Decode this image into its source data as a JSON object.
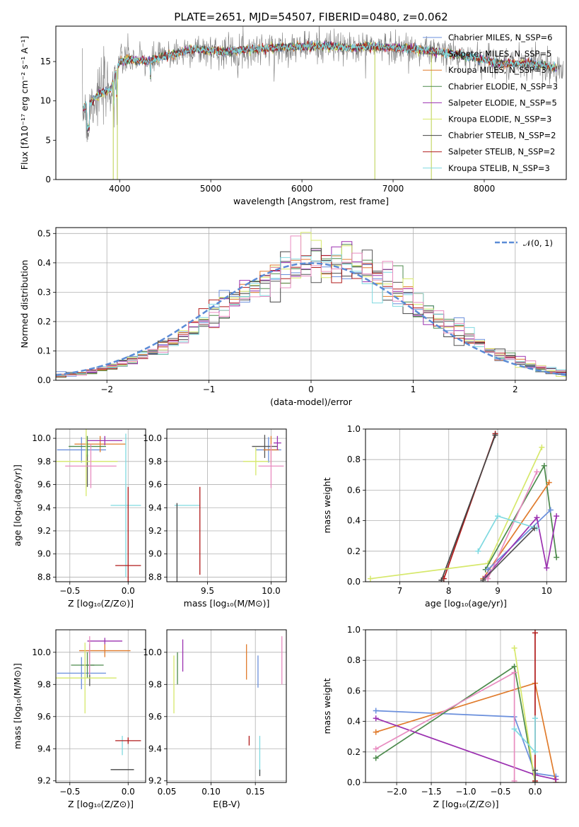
{
  "colors": {
    "Chabrier MILES": "#6a8fdc",
    "Salpeter MILES": "#555555",
    "Kroupa MILES": "#e07b2c",
    "Chabrier ELODIE": "#4c8a4c",
    "Salpeter ELODIE": "#9b30b0",
    "Kroupa ELODIE": "#d6e86a",
    "Chabrier STELIB": "#444444",
    "Salpeter STELIB": "#b01a1a",
    "Kroupa STELIB": "#7fd9e0",
    "extra_pink": "#e88cc0",
    "normal": "#5b8bd6"
  },
  "chart_data": [
    {
      "id": "spectrum",
      "type": "line",
      "title": "PLATE=2651, MJD=54507, FIBERID=0480, z=0.062",
      "xlabel": "wavelength [Angstrom, rest frame]",
      "ylabel": "Flux [fλ10⁻¹⁷ erg cm⁻² s⁻¹ A⁻¹]",
      "xlim": [
        3300,
        8900
      ],
      "ylim": [
        0,
        19.5
      ],
      "xticks": [
        4000,
        5000,
        6000,
        7000,
        8000
      ],
      "yticks": [
        0,
        5,
        10,
        15
      ],
      "grid": false,
      "legend": "right",
      "legend_entries": [
        "Chabrier MILES, N_SSP=6",
        "Salpeter MILES, N_SSP=5",
        "Kroupa MILES, N_SSP=3",
        "Chabrier ELODIE, N_SSP=3",
        "Salpeter ELODIE, N_SSP=5",
        "Kroupa ELODIE, N_SSP=3",
        "Chabrier STELIB, N_SSP=2",
        "Salpeter STELIB, N_SSP=2",
        "Kroupa STELIB, N_SSP=3"
      ],
      "legend_models": [
        "Chabrier MILES",
        "Salpeter MILES",
        "Kroupa MILES",
        "Chabrier ELODIE",
        "Salpeter ELODIE",
        "Kroupa ELODIE",
        "Chabrier STELIB",
        "Salpeter STELIB",
        "Kroupa STELIB"
      ],
      "continuum": {
        "x": [
          3600,
          3700,
          3800,
          3900,
          4000,
          4100,
          4300,
          4500,
          4800,
          5000,
          5200,
          5500,
          5800,
          6000,
          6300,
          6500,
          6700,
          7000,
          7300,
          7500,
          7700,
          8000,
          8200,
          8500,
          8800
        ],
        "y": [
          9.0,
          10.0,
          11.0,
          11.5,
          15.0,
          15.3,
          15.0,
          15.7,
          16.5,
          16.4,
          16.3,
          16.6,
          16.8,
          16.9,
          17.0,
          16.7,
          16.9,
          16.8,
          16.5,
          16.2,
          15.9,
          15.2,
          14.7,
          14.8,
          14.2
        ]
      },
      "drops": [
        {
          "x": 3930,
          "y": 0
        },
        {
          "x": 3975,
          "y": 0
        },
        {
          "x": 6800,
          "y": 0
        },
        {
          "x": 7420,
          "y": 0
        }
      ]
    },
    {
      "id": "residuals",
      "type": "histogram",
      "xlabel": "(data-model)/error",
      "ylabel": "Normed distribution",
      "xlim": [
        -2.5,
        2.5
      ],
      "ylim": [
        0,
        0.52
      ],
      "xticks": [
        -2,
        -1,
        0,
        1,
        2
      ],
      "yticks": [
        0.0,
        0.1,
        0.2,
        0.3,
        0.4,
        0.5
      ],
      "grid": true,
      "legend": "top-right",
      "normal_label": "𝒩(0, 1)",
      "bin_width": 0.1
    },
    {
      "id": "age_Z",
      "type": "errorbar",
      "xlabel": "Z [log₁₀(Z/Z⊙)]",
      "ylabel": "age  [log₁₀(age/yr)]",
      "xlim": [
        -0.62,
        0.15
      ],
      "ylim": [
        8.76,
        10.08
      ],
      "xticks": [
        -0.5,
        0.0
      ],
      "yticks": [
        8.8,
        9.0,
        9.2,
        9.4,
        9.6,
        9.8,
        10.0
      ],
      "grid": true,
      "points": [
        {
          "model": "Chabrier MILES",
          "x": -0.4,
          "y": 9.9,
          "xerr": 0.21,
          "yerr": 0.11
        },
        {
          "model": "Salpeter MILES",
          "x": -0.35,
          "y": 9.72,
          "xerr": 0.0,
          "yerr": 0.14
        },
        {
          "model": "Kroupa MILES",
          "x": -0.24,
          "y": 9.95,
          "xerr": 0.22,
          "yerr": 0.07
        },
        {
          "model": "Chabrier ELODIE",
          "x": -0.35,
          "y": 9.93,
          "xerr": 0.16,
          "yerr": 0.09
        },
        {
          "model": "Salpeter ELODIE",
          "x": -0.2,
          "y": 9.98,
          "xerr": 0.15,
          "yerr": 0.04
        },
        {
          "model": "Kroupa ELODIE",
          "x": -0.36,
          "y": 9.8,
          "xerr": 0.27,
          "yerr": 0.3
        },
        {
          "model": "extra_pink",
          "x": -0.32,
          "y": 9.76,
          "xerr": 0.22,
          "yerr": 0.19
        },
        {
          "model": "Kroupa STELIB",
          "x": -0.02,
          "y": 9.42,
          "xerr": 0.13,
          "yerr": 0.62
        },
        {
          "model": "Salpeter STELIB",
          "x": 0.0,
          "y": 8.9,
          "xerr": 0.11,
          "yerr": 0.68
        }
      ]
    },
    {
      "id": "age_mass",
      "type": "errorbar",
      "xlabel": "mass [log₁₀(M/M⊙)]",
      "ylabel": "",
      "xlim": [
        9.18,
        10.12
      ],
      "ylim": [
        8.76,
        10.08
      ],
      "xticks": [
        9.5,
        10.0
      ],
      "yticks": [
        8.8,
        9.0,
        9.2,
        9.4,
        9.6,
        9.8,
        10.0
      ],
      "grid": true,
      "points": [
        {
          "model": "Chabrier MILES",
          "x": 9.98,
          "y": 9.9,
          "xerr": 0.1,
          "yerr": 0.11
        },
        {
          "model": "Salpeter MILES",
          "x": 9.95,
          "y": 9.93,
          "xerr": 0.1,
          "yerr": 0.1
        },
        {
          "model": "Kroupa MILES",
          "x": 10.0,
          "y": 9.9,
          "xerr": 0.06,
          "yerr": 0.12
        },
        {
          "model": "Salpeter ELODIE",
          "x": 10.05,
          "y": 9.96,
          "xerr": 0.03,
          "yerr": 0.06
        },
        {
          "model": "Kroupa ELODIE",
          "x": 9.88,
          "y": 9.8,
          "xerr": 0.1,
          "yerr": 0.12
        },
        {
          "model": "extra_pink",
          "x": 10.0,
          "y": 9.76,
          "xerr": 0.1,
          "yerr": 0.19
        },
        {
          "model": "Kroupa STELIB",
          "x": 9.34,
          "y": 9.42,
          "xerr": 0.1,
          "yerr": 0.0
        },
        {
          "model": "Chabrier STELIB",
          "x": 9.26,
          "y": 9.1,
          "xerr": 0.0,
          "yerr": 0.34
        },
        {
          "model": "Salpeter STELIB",
          "x": 9.44,
          "y": 9.2,
          "xerr": 0.0,
          "yerr": 0.38
        }
      ]
    },
    {
      "id": "weight_age",
      "type": "line",
      "xlabel": "age  [log₁₀(age/yr)]",
      "ylabel": "mass weight",
      "xlim": [
        6.3,
        10.4
      ],
      "ylim": [
        0,
        1.0
      ],
      "xticks": [
        7,
        8,
        9,
        10
      ],
      "yticks": [
        0.0,
        0.2,
        0.4,
        0.6,
        0.8,
        1.0
      ],
      "grid": true,
      "series": [
        {
          "model": "Salpeter STELIB",
          "x": [
            7.9,
            8.95
          ],
          "y": [
            0.02,
            0.97
          ]
        },
        {
          "model": "Chabrier STELIB",
          "x": [
            7.85,
            8.95
          ],
          "y": [
            0.01,
            0.96
          ]
        },
        {
          "model": "Kroupa ELODIE",
          "x": [
            6.4,
            8.8,
            9.9
          ],
          "y": [
            0.02,
            0.12,
            0.88
          ]
        },
        {
          "model": "Chabrier ELODIE",
          "x": [
            8.75,
            9.95,
            10.2
          ],
          "y": [
            0.08,
            0.76,
            0.16
          ]
        },
        {
          "model": "Kroupa MILES",
          "x": [
            8.7,
            10.05
          ],
          "y": [
            0.02,
            0.65
          ]
        },
        {
          "model": "Chabrier MILES",
          "x": [
            8.8,
            10.08
          ],
          "y": [
            0.08,
            0.47
          ]
        },
        {
          "model": "Salpeter ELODIE",
          "x": [
            8.75,
            9.8,
            10.0,
            10.2
          ],
          "y": [
            0.03,
            0.42,
            0.09,
            0.43
          ]
        },
        {
          "model": "extra_pink",
          "x": [
            8.8,
            9.8
          ],
          "y": [
            0.02,
            0.72
          ]
        },
        {
          "model": "Kroupa STELIB",
          "x": [
            8.6,
            9.0,
            9.8
          ],
          "y": [
            0.2,
            0.43,
            0.35
          ]
        },
        {
          "model": "Salpeter MILES",
          "x": [
            8.7,
            9.75
          ],
          "y": [
            0.01,
            0.35
          ]
        }
      ]
    },
    {
      "id": "mass_Z",
      "type": "errorbar",
      "xlabel": "Z [log₁₀(Z/Z⊙)]",
      "ylabel": "mass [log₁₀(M/M⊙)]",
      "xlim": [
        -0.62,
        0.15
      ],
      "ylim": [
        9.19,
        10.14
      ],
      "xticks": [
        -0.5,
        0.0
      ],
      "yticks": [
        9.2,
        9.4,
        9.6,
        9.8,
        10.0
      ],
      "grid": true,
      "points": [
        {
          "model": "Chabrier MILES",
          "x": -0.4,
          "y": 9.87,
          "xerr": 0.21,
          "yerr": 0.1
        },
        {
          "model": "Salpeter MILES",
          "x": -0.33,
          "y": 9.92,
          "xerr": 0.04,
          "yerr": 0.13
        },
        {
          "model": "Kroupa MILES",
          "x": -0.2,
          "y": 10.01,
          "xerr": 0.22,
          "yerr": 0.04
        },
        {
          "model": "Chabrier ELODIE",
          "x": -0.35,
          "y": 9.92,
          "xerr": 0.14,
          "yerr": 0.08
        },
        {
          "model": "Salpeter ELODIE",
          "x": -0.2,
          "y": 10.07,
          "xerr": 0.15,
          "yerr": 0.02
        },
        {
          "model": "Kroupa ELODIE",
          "x": -0.37,
          "y": 9.84,
          "xerr": 0.27,
          "yerr": 0.22
        },
        {
          "model": "extra_pink",
          "x": -0.33,
          "y": 9.98,
          "xerr": 0.0,
          "yerr": 0.12
        },
        {
          "model": "Kroupa STELIB",
          "x": -0.05,
          "y": 9.42,
          "xerr": 0.0,
          "yerr": 0.06
        },
        {
          "model": "Salpeter STELIB",
          "x": 0.0,
          "y": 9.45,
          "xerr": 0.11,
          "yerr": 0.02
        },
        {
          "model": "Chabrier STELIB",
          "x": -0.05,
          "y": 9.27,
          "xerr": 0.1,
          "yerr": 0.0
        }
      ]
    },
    {
      "id": "mass_ebv",
      "type": "errorbar",
      "xlabel": "E(B-V)",
      "ylabel": "",
      "xlim": [
        0.05,
        0.185
      ],
      "ylim": [
        9.19,
        10.14
      ],
      "xticks": [
        0.05,
        0.1,
        0.15
      ],
      "yticks": [
        9.2,
        9.4,
        9.6,
        9.8,
        10.0
      ],
      "grid": true,
      "points": [
        {
          "model": "Kroupa ELODIE",
          "x": 0.058,
          "y": 9.8,
          "xerr": 0,
          "yerr": 0.18
        },
        {
          "model": "Chabrier ELODIE",
          "x": 0.062,
          "y": 9.9,
          "xerr": 0,
          "yerr": 0.1
        },
        {
          "model": "Salpeter ELODIE",
          "x": 0.068,
          "y": 9.98,
          "xerr": 0,
          "yerr": 0.1
        },
        {
          "model": "Kroupa MILES",
          "x": 0.14,
          "y": 9.94,
          "xerr": 0,
          "yerr": 0.11
        },
        {
          "model": "Chabrier MILES",
          "x": 0.153,
          "y": 9.88,
          "xerr": 0,
          "yerr": 0.1
        },
        {
          "model": "extra_pink",
          "x": 0.18,
          "y": 9.95,
          "xerr": 0,
          "yerr": 0.15
        },
        {
          "model": "Salpeter STELIB",
          "x": 0.143,
          "y": 9.45,
          "xerr": 0,
          "yerr": 0.03
        },
        {
          "model": "Kroupa STELIB",
          "x": 0.155,
          "y": 9.36,
          "xerr": 0,
          "yerr": 0.12
        },
        {
          "model": "Chabrier STELIB",
          "x": 0.155,
          "y": 9.25,
          "xerr": 0,
          "yerr": 0.02
        }
      ]
    },
    {
      "id": "weight_Z",
      "type": "line",
      "xlabel": "Z [log₁₀(Z/Z⊙)]",
      "ylabel": "mass weight",
      "xlim": [
        -2.45,
        0.45
      ],
      "ylim": [
        0,
        1.0
      ],
      "xticks": [
        -2.0,
        -1.5,
        -1.0,
        -0.5,
        0.0
      ],
      "yticks": [
        0.0,
        0.2,
        0.4,
        0.6,
        0.8,
        1.0
      ],
      "grid": true,
      "series": [
        {
          "model": "Chabrier MILES",
          "x": [
            -2.3,
            -0.3,
            0.0,
            0.3
          ],
          "y": [
            0.47,
            0.43,
            0.06,
            0.04
          ]
        },
        {
          "model": "Kroupa MILES",
          "x": [
            -2.3,
            0.0,
            0.3
          ],
          "y": [
            0.33,
            0.65,
            0.0
          ]
        },
        {
          "model": "Chabrier ELODIE",
          "x": [
            -2.3,
            -0.3,
            0.0
          ],
          "y": [
            0.16,
            0.76,
            0.0
          ]
        },
        {
          "model": "Salpeter ELODIE",
          "x": [
            -2.3,
            0.0,
            0.3
          ],
          "y": [
            0.42,
            0.05,
            0.02
          ]
        },
        {
          "model": "extra_pink",
          "x": [
            -2.3,
            -0.3,
            -0.3
          ],
          "y": [
            0.22,
            0.72,
            0.01
          ]
        },
        {
          "model": "Kroupa ELODIE",
          "x": [
            -0.3,
            0.0
          ],
          "y": [
            0.88,
            0.0
          ]
        },
        {
          "model": "Salpeter STELIB",
          "x": [
            0.0,
            0.0
          ],
          "y": [
            0.98,
            0.01
          ]
        },
        {
          "model": "Kroupa STELIB",
          "x": [
            -0.3,
            0.0,
            0.0
          ],
          "y": [
            0.35,
            0.2,
            0.42
          ]
        },
        {
          "model": "Salpeter MILES",
          "x": [
            0.0,
            0.0
          ],
          "y": [
            0.08,
            0.0
          ]
        }
      ]
    }
  ]
}
